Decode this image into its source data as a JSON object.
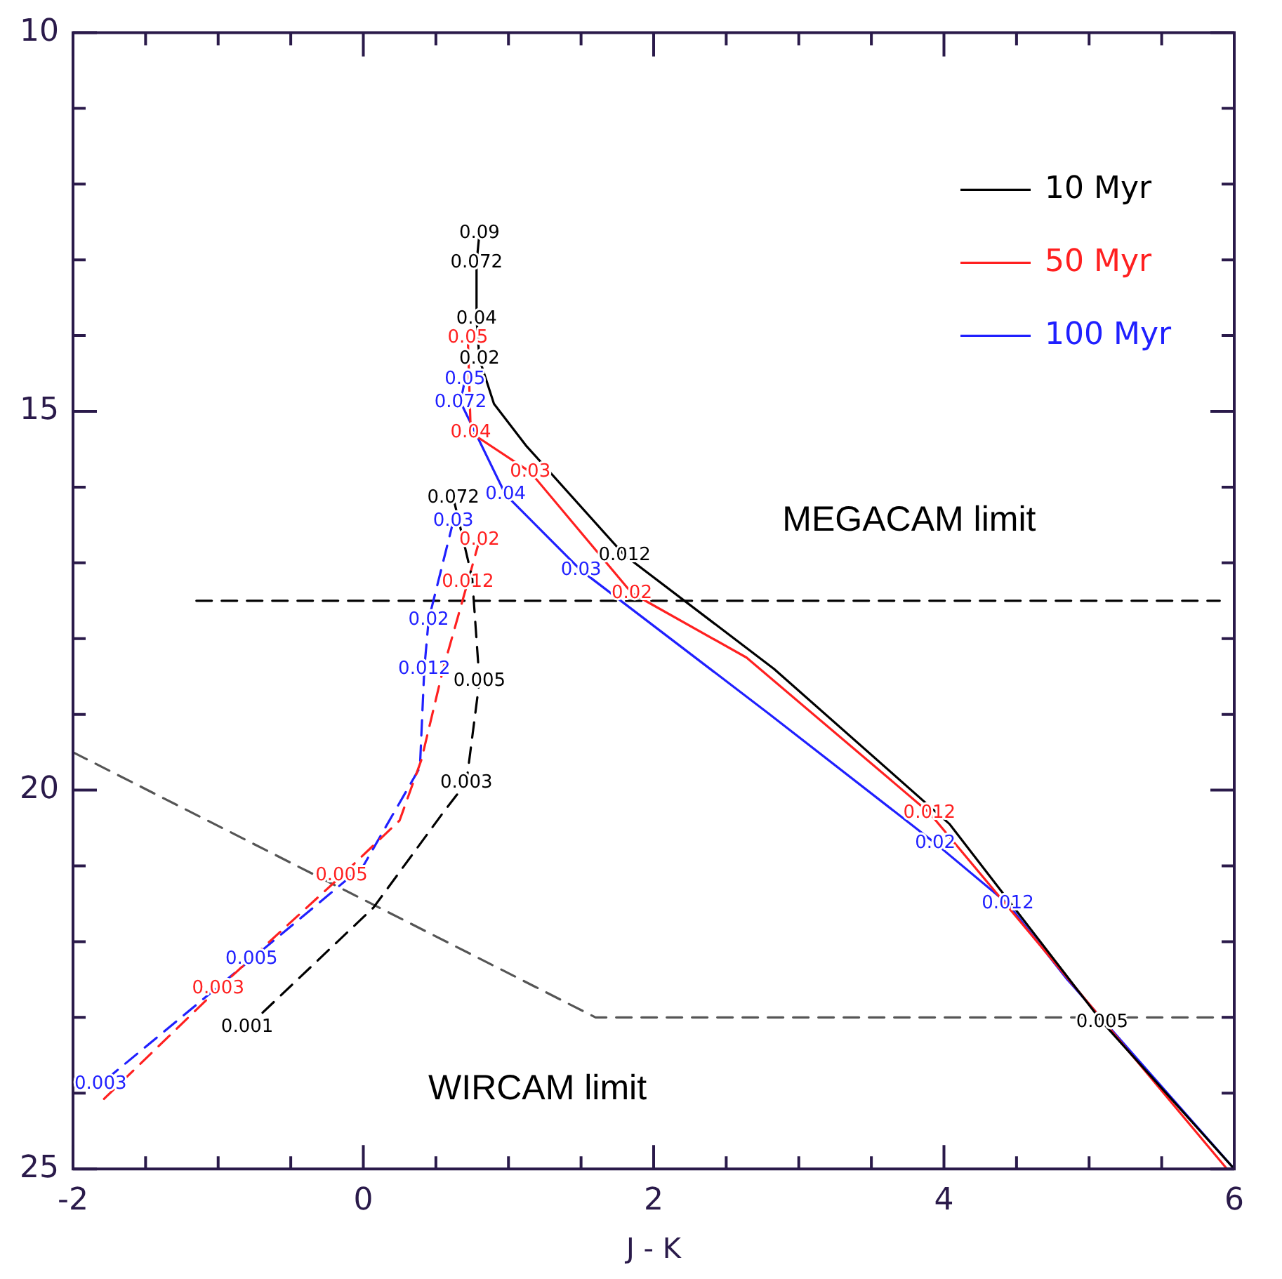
{
  "chart_data": {
    "type": "line",
    "xlabel": "J - K",
    "xlim": [
      -2,
      6
    ],
    "ylim": [
      25,
      10
    ],
    "xticks": [
      -2,
      {
        "value": -1.5,
        "label": null
      },
      {
        "value": -1,
        "label": null
      },
      {
        "value": -0.5,
        "label": null
      },
      0,
      {
        "value": 0.5,
        "label": null
      },
      {
        "value": 1,
        "label": null
      },
      {
        "value": 1.5,
        "label": null
      },
      2,
      {
        "value": 2.5,
        "label": null
      },
      {
        "value": 3,
        "label": null
      },
      {
        "value": 3.5,
        "label": null
      },
      4,
      {
        "value": 4.5,
        "label": null
      },
      {
        "value": 5,
        "label": null
      },
      {
        "value": 5.5,
        "label": null
      },
      6
    ],
    "yticks": [
      10,
      {
        "value": 11,
        "label": null
      },
      {
        "value": 12,
        "label": null
      },
      {
        "value": 13,
        "label": null
      },
      {
        "value": 14,
        "label": null
      },
      15,
      {
        "value": 16,
        "label": null
      },
      {
        "value": 17,
        "label": null
      },
      {
        "value": 18,
        "label": null
      },
      {
        "value": 19,
        "label": null
      },
      20,
      {
        "value": 21,
        "label": null
      },
      {
        "value": 22,
        "label": null
      },
      {
        "value": 23,
        "label": null
      },
      {
        "value": 24,
        "label": null
      },
      25
    ],
    "legend": "top right",
    "marker": "none",
    "series": [
      {
        "name": "10 Myr",
        "color": "#000000",
        "line_style": "solid",
        "x": [
          0.8,
          0.78,
          0.78,
          0.8,
          0.9,
          1.12,
          1.8,
          2.83,
          4.04,
          5.09,
          6.0
        ],
        "values": [
          12.65,
          13.04,
          13.78,
          14.31,
          14.9,
          15.45,
          16.9,
          18.4,
          20.45,
          23.06,
          25.0
        ]
      },
      {
        "name": "50 Myr",
        "color": "#ff2020",
        "line_style": "solid",
        "x": [
          0.72,
          0.74,
          1.15,
          1.85,
          2.64,
          3.9,
          5.95
        ],
        "values": [
          14.03,
          15.28,
          15.8,
          17.4,
          18.25,
          20.3,
          25.0
        ]
      },
      {
        "name": "100 Myr",
        "color": "#2020ff",
        "line_style": "solid",
        "x": [
          0.7,
          0.67,
          0.98,
          1.5,
          2.8,
          3.94,
          4.44,
          4.85,
          6.0
        ],
        "values": [
          14.58,
          14.88,
          16.1,
          17.1,
          19.0,
          20.7,
          21.5,
          22.5,
          25.0
        ]
      },
      {
        "color": "#000000",
        "line_style": "dashed",
        "x": [
          0.62,
          0.75,
          0.8,
          0.71,
          0.56,
          0.07,
          -0.8
        ],
        "values": [
          16.14,
          17.2,
          18.56,
          19.9,
          20.27,
          21.55,
          23.13
        ]
      },
      {
        "color": "#ff2020",
        "line_style": "dashed",
        "x": [
          0.8,
          0.72,
          0.55,
          0.4,
          0.25,
          -0.15,
          -1.0,
          -1.81
        ],
        "values": [
          16.7,
          17.25,
          18.4,
          19.6,
          20.4,
          21.13,
          22.62,
          24.12
        ]
      },
      {
        "color": "#2020ff",
        "line_style": "dashed",
        "x": [
          0.62,
          0.45,
          0.42,
          0.39,
          0.0,
          -0.77,
          -1.81
        ],
        "values": [
          16.45,
          17.75,
          18.4,
          19.7,
          21.0,
          22.23,
          23.88
        ]
      },
      {
        "color": "#000000",
        "line_style": "dashed",
        "x": [
          -1.15,
          5.9
        ],
        "values": [
          17.5,
          17.5
        ]
      },
      {
        "color": "#555555",
        "line_style": "dashed",
        "x": [
          -2.0,
          1.6,
          6.0
        ],
        "values": [
          19.5,
          23.0,
          23.0
        ]
      }
    ],
    "annotations": [
      "MEGACAM limit",
      "WIRCAM limit",
      {
        "text": "0.09",
        "x": 0.8,
        "y": 12.65
      },
      {
        "text": "0.072",
        "x": 0.78,
        "y": 13.04
      },
      {
        "text": "0.04",
        "x": 0.78,
        "y": 13.78
      },
      {
        "text": "0.02",
        "x": 0.8,
        "y": 14.31
      },
      {
        "text": "0.012",
        "x": 1.8,
        "y": 16.9
      },
      {
        "text": "0.005",
        "x": 5.09,
        "y": 23.06
      },
      {
        "text": "0.05",
        "x": 0.72,
        "y": 14.03
      },
      {
        "text": "0.04",
        "x": 0.74,
        "y": 15.28
      },
      {
        "text": "0.03",
        "x": 1.15,
        "y": 15.8
      },
      {
        "text": "0.02",
        "x": 1.85,
        "y": 17.4
      },
      {
        "text": "0.012",
        "x": 3.9,
        "y": 20.3
      },
      {
        "text": "0.05",
        "x": 0.7,
        "y": 14.58
      },
      {
        "text": "0.072",
        "x": 0.67,
        "y": 14.88
      },
      {
        "text": "0.04",
        "x": 0.98,
        "y": 16.1
      },
      {
        "text": "0.03",
        "x": 1.5,
        "y": 17.1
      },
      {
        "text": "0.02",
        "x": 3.94,
        "y": 20.7
      },
      {
        "text": "0.012",
        "x": 4.44,
        "y": 21.5
      },
      {
        "text": "0.072",
        "x": 0.62,
        "y": 16.14
      },
      {
        "text": "0.005",
        "x": 0.8,
        "y": 18.56
      },
      {
        "text": "0.003",
        "x": 0.71,
        "y": 19.9
      },
      {
        "text": "0.001",
        "x": -0.8,
        "y": 23.13
      },
      {
        "text": "0.02",
        "x": 0.8,
        "y": 16.7
      },
      {
        "text": "0.012",
        "x": 0.72,
        "y": 17.25
      },
      {
        "text": "0.005",
        "x": -0.15,
        "y": 21.13
      },
      {
        "text": "0.003",
        "x": -1.0,
        "y": 22.62
      },
      {
        "text": "0.03",
        "x": 0.62,
        "y": 16.45
      },
      {
        "text": "0.02",
        "x": 0.45,
        "y": 17.75
      },
      {
        "text": "0.012",
        "x": 0.42,
        "y": 18.4
      },
      {
        "text": "0.005",
        "x": -0.77,
        "y": 22.23
      },
      {
        "text": "0.003",
        "x": -1.81,
        "y": 23.88
      }
    ]
  }
}
